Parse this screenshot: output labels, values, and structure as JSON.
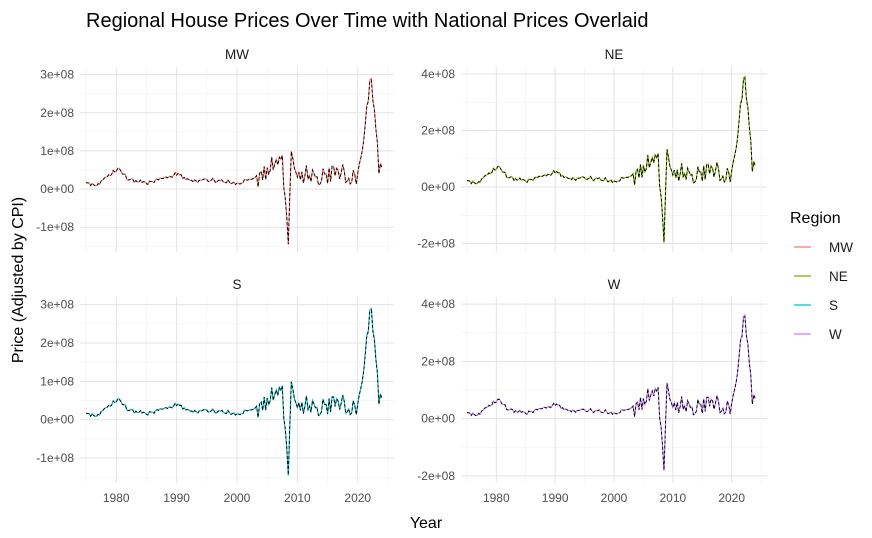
{
  "chart_data": {
    "type": "line",
    "title": "Regional House Prices Over Time with National Prices Overlaid",
    "xlabel": "Year",
    "ylabel": "Price (Adjusted by CPI)",
    "grid": true,
    "legend": {
      "title": "Region",
      "position": "right",
      "entries": [
        {
          "name": "MW",
          "color": "#F8766D"
        },
        {
          "name": "NE",
          "color": "#7CAE00"
        },
        {
          "name": "S",
          "color": "#00BFC4"
        },
        {
          "name": "W",
          "color": "#C77CFF"
        }
      ]
    },
    "national_series": {
      "name": "National",
      "color": "#000000",
      "style": "dashed"
    },
    "x_ticks": [
      1980,
      1990,
      2000,
      2010,
      2020
    ],
    "xlim": [
      1974,
      2026
    ],
    "key_points": [
      [
        1975,
        15000000
      ],
      [
        1977,
        12000000
      ],
      [
        1979.5,
        45000000
      ],
      [
        1980.3,
        55000000
      ],
      [
        1982,
        25000000
      ],
      [
        1985,
        15000000
      ],
      [
        1988,
        28000000
      ],
      [
        1990,
        40000000
      ],
      [
        1992,
        22000000
      ],
      [
        1995,
        25000000
      ],
      [
        1998,
        20000000
      ],
      [
        2000,
        15000000
      ],
      [
        2002,
        28000000
      ],
      [
        2004,
        35000000
      ],
      [
        2005.5,
        60000000
      ],
      [
        2006.5,
        70000000
      ],
      [
        2007.5,
        80000000
      ],
      [
        2008.5,
        -150000000
      ],
      [
        2009,
        90000000
      ],
      [
        2010,
        40000000
      ],
      [
        2012,
        35000000
      ],
      [
        2014,
        30000000
      ],
      [
        2016,
        45000000
      ],
      [
        2018,
        40000000
      ],
      [
        2019.5,
        30000000
      ],
      [
        2020.5,
        100000000
      ],
      [
        2021.5,
        200000000
      ],
      [
        2022.3,
        310000000
      ],
      [
        2022.8,
        170000000
      ],
      [
        2023.3,
        80000000
      ],
      [
        2024,
        60000000
      ]
    ],
    "panels": [
      {
        "region": "MW",
        "color": "#F8766D",
        "scale": 1.0,
        "ylim": [
          -165000000,
          320000000
        ],
        "y_ticks": [
          -100000000,
          0,
          100000000,
          200000000,
          300000000
        ],
        "y_tick_labels": [
          "-1e+08",
          "0e+00",
          "1e+08",
          "2e+08",
          "3e+08"
        ]
      },
      {
        "region": "NE",
        "color": "#7CAE00",
        "scale": 1.35,
        "ylim": [
          -230000000,
          425000000
        ],
        "y_ticks": [
          -200000000,
          0,
          200000000,
          400000000
        ],
        "y_tick_labels": [
          "-2e+08",
          "0e+00",
          "2e+08",
          "4e+08"
        ]
      },
      {
        "region": "S",
        "color": "#00BFC4",
        "scale": 1.0,
        "ylim": [
          -165000000,
          320000000
        ],
        "y_ticks": [
          -100000000,
          0,
          100000000,
          200000000,
          300000000
        ],
        "y_tick_labels": [
          "-1e+08",
          "0e+00",
          "1e+08",
          "2e+08",
          "3e+08"
        ]
      },
      {
        "region": "W",
        "color": "#C77CFF",
        "scale": 1.25,
        "ylim": [
          -225000000,
          425000000
        ],
        "y_ticks": [
          -200000000,
          0,
          200000000,
          400000000
        ],
        "y_tick_labels": [
          "-2e+08",
          "0e+00",
          "2e+08",
          "4e+08"
        ]
      }
    ]
  }
}
